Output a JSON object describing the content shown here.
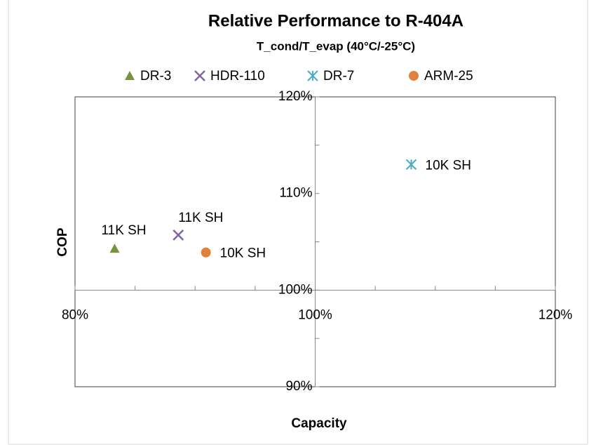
{
  "chart_data": {
    "type": "scatter",
    "title": "Relative Performance to R-404A",
    "subtitle": "T_cond/T_evap (40°C/-25°C)",
    "x_label": "Capacity",
    "y_label": "COP",
    "xlim": [
      80,
      120
    ],
    "ylim": [
      90,
      120
    ],
    "xticks": [
      {
        "value": 80,
        "label": "80%"
      },
      {
        "value": 100,
        "label": "100%"
      },
      {
        "value": 120,
        "label": "120%"
      }
    ],
    "yticks": [
      {
        "value": 90,
        "label": "90%"
      },
      {
        "value": 100,
        "label": "100%"
      },
      {
        "value": 110,
        "label": "110%"
      },
      {
        "value": 120,
        "label": "120%"
      }
    ],
    "xminorticks": [
      85,
      90,
      95,
      105,
      110,
      115
    ],
    "yminorticks": [
      95,
      105,
      115
    ],
    "axis_cross": [
      100,
      100
    ],
    "legend": "top",
    "series": [
      {
        "name": "DR-3",
        "color": "#77933c",
        "marker": "triangle",
        "x": [
          83.3
        ],
        "values": [
          104.3
        ],
        "labels": [
          "11K SH"
        ]
      },
      {
        "name": "HDR-110",
        "color": "#8064a2",
        "marker": "x",
        "x": [
          88.6
        ],
        "values": [
          105.7
        ],
        "labels": [
          "11K SH"
        ]
      },
      {
        "name": "DR-7",
        "color": "#4bacc6",
        "marker": "star",
        "x": [
          108.0
        ],
        "values": [
          113.0
        ],
        "labels": [
          "10K SH"
        ]
      },
      {
        "name": "ARM-25",
        "color": "#e0823d",
        "marker": "circle",
        "x": [
          90.9
        ],
        "values": [
          103.9
        ],
        "labels": [
          "10K SH"
        ]
      }
    ]
  }
}
